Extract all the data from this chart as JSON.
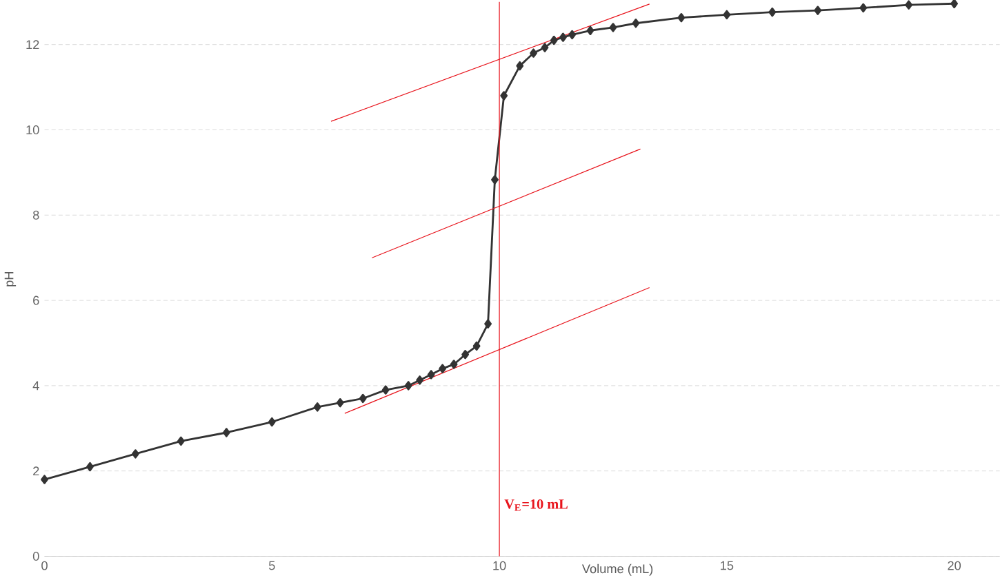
{
  "chart_data": {
    "type": "line",
    "xlabel": "Volume (mL)",
    "ylabel": "pH",
    "xlim": [
      0,
      21
    ],
    "ylim": [
      0,
      13
    ],
    "xticks": [
      0,
      5,
      10,
      15,
      20
    ],
    "yticks": [
      0,
      2,
      4,
      6,
      8,
      10,
      12
    ],
    "grid": "y",
    "marker": "diamond",
    "line_style": "solid",
    "series": [
      {
        "color": "#333333",
        "x": [
          0,
          1,
          2,
          3,
          4,
          5,
          6,
          6.5,
          7,
          7.5,
          8,
          8.25,
          8.5,
          8.75,
          9,
          9.25,
          9.5,
          9.75,
          9.9,
          10.1,
          10.45,
          10.75,
          11,
          11.2,
          11.4,
          11.6,
          12,
          12.5,
          13,
          14,
          15,
          16,
          17,
          18,
          19,
          20
        ],
        "values": [
          1.8,
          2.1,
          2.4,
          2.7,
          2.9,
          3.15,
          3.5,
          3.6,
          3.7,
          3.9,
          4.0,
          4.13,
          4.26,
          4.4,
          4.5,
          4.73,
          4.93,
          5.45,
          8.83,
          10.8,
          11.5,
          11.8,
          11.93,
          12.1,
          12.17,
          12.23,
          12.33,
          12.4,
          12.5,
          12.63,
          12.7,
          12.76,
          12.8,
          12.86,
          12.93,
          12.96
        ]
      },
      {
        "type": "line",
        "color": "#e8141c",
        "marker": "none",
        "x": [
          6.3,
          13.3
        ],
        "values": [
          10.2,
          12.95
        ]
      },
      {
        "type": "line",
        "color": "#e8141c",
        "marker": "none",
        "x": [
          7.2,
          13.1
        ],
        "values": [
          7.0,
          9.55
        ]
      },
      {
        "type": "line",
        "color": "#e8141c",
        "marker": "none",
        "x": [
          6.6,
          13.3
        ],
        "values": [
          3.35,
          6.3
        ]
      }
    ],
    "ref_lines": [
      {
        "axis": "x",
        "value": 10,
        "label": "V$_{E}$=10 mL",
        "color": "#e8141c"
      }
    ]
  }
}
